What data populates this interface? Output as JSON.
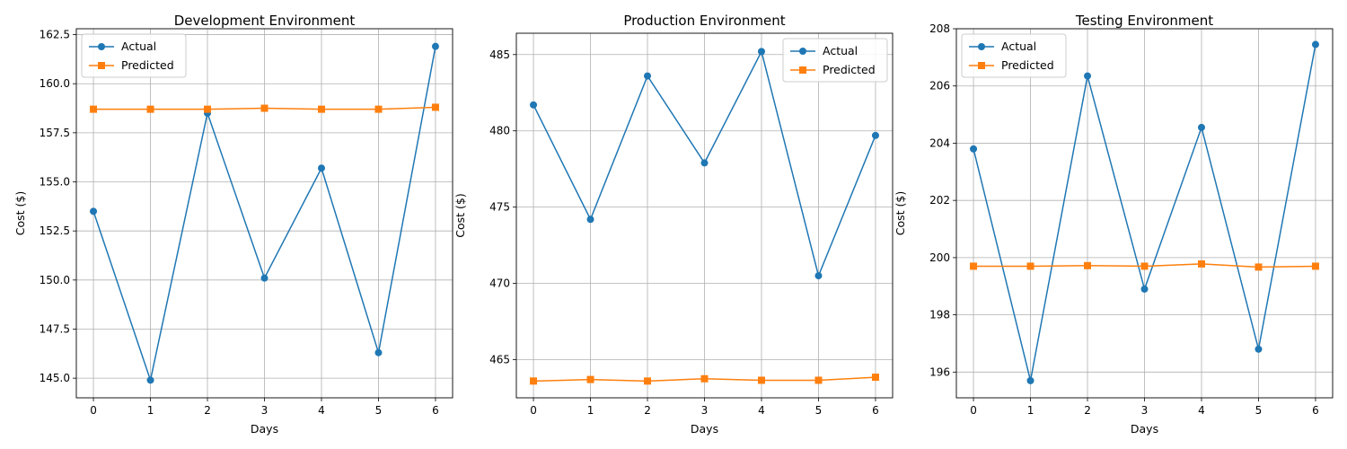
{
  "colors": {
    "actual": "#1f77b4",
    "predicted": "#ff7f0e",
    "grid": "#b0b0b0",
    "axis": "#000000"
  },
  "chart_data": [
    {
      "type": "line",
      "title": "Development Environment",
      "xlabel": "Days",
      "ylabel": "Cost ($)",
      "x": [
        0,
        1,
        2,
        3,
        4,
        5,
        6
      ],
      "xticks": [
        "0",
        "1",
        "2",
        "3",
        "4",
        "5",
        "6"
      ],
      "xlim": [
        -0.3,
        6.3
      ],
      "ylim": [
        144.0,
        162.8
      ],
      "yticks": [
        145.0,
        147.5,
        150.0,
        152.5,
        155.0,
        157.5,
        160.0,
        162.5
      ],
      "ytick_labels": [
        "145.0",
        "147.5",
        "150.0",
        "152.5",
        "155.0",
        "157.5",
        "160.0",
        "162.5"
      ],
      "grid": true,
      "legend_position": "upper left",
      "series": [
        {
          "name": "Actual",
          "marker": "circle",
          "values": [
            153.5,
            144.9,
            158.5,
            150.1,
            155.7,
            146.3,
            161.9
          ]
        },
        {
          "name": "Predicted",
          "marker": "square",
          "values": [
            158.7,
            158.7,
            158.7,
            158.75,
            158.7,
            158.7,
            158.8
          ]
        }
      ]
    },
    {
      "type": "line",
      "title": "Production Environment",
      "xlabel": "Days",
      "ylabel": "Cost ($)",
      "x": [
        0,
        1,
        2,
        3,
        4,
        5,
        6
      ],
      "xticks": [
        "0",
        "1",
        "2",
        "3",
        "4",
        "5",
        "6"
      ],
      "xlim": [
        -0.3,
        6.3
      ],
      "ylim": [
        462.5,
        486.4
      ],
      "yticks": [
        465,
        470,
        475,
        480,
        485
      ],
      "ytick_labels": [
        "465",
        "470",
        "475",
        "480",
        "485"
      ],
      "grid": true,
      "legend_position": "upper right",
      "series": [
        {
          "name": "Actual",
          "marker": "circle",
          "values": [
            481.7,
            474.2,
            483.6,
            477.9,
            485.2,
            470.5,
            479.7
          ]
        },
        {
          "name": "Predicted",
          "marker": "square",
          "values": [
            463.6,
            463.7,
            463.6,
            463.75,
            463.65,
            463.65,
            463.85
          ]
        }
      ]
    },
    {
      "type": "line",
      "title": "Testing Environment",
      "xlabel": "Days",
      "ylabel": "Cost ($)",
      "x": [
        0,
        1,
        2,
        3,
        4,
        5,
        6
      ],
      "xticks": [
        "0",
        "1",
        "2",
        "3",
        "4",
        "5",
        "6"
      ],
      "xlim": [
        -0.3,
        6.3
      ],
      "ylim": [
        195.1,
        208.0
      ],
      "yticks": [
        196,
        198,
        200,
        202,
        204,
        206,
        208
      ],
      "ytick_labels": [
        "196",
        "198",
        "200",
        "202",
        "204",
        "206",
        "208"
      ],
      "grid": true,
      "legend_position": "upper left",
      "series": [
        {
          "name": "Actual",
          "marker": "circle",
          "values": [
            203.8,
            195.7,
            206.35,
            198.9,
            204.55,
            196.8,
            207.45
          ]
        },
        {
          "name": "Predicted",
          "marker": "square",
          "values": [
            199.7,
            199.7,
            199.72,
            199.7,
            199.78,
            199.67,
            199.7
          ]
        }
      ]
    }
  ]
}
